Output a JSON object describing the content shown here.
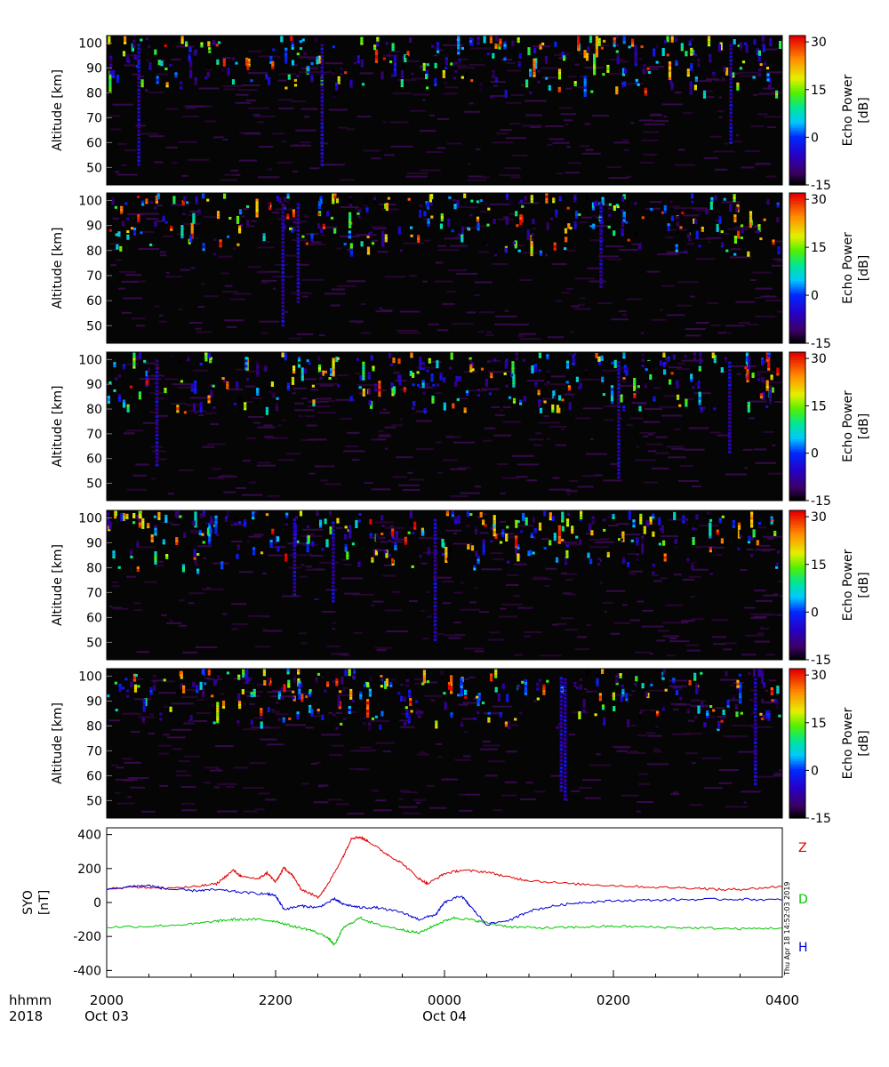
{
  "chart_data": [
    {
      "type": "heatmap",
      "panel": 1,
      "ylabel": "Altitude  [km]",
      "yticks": [
        "50",
        "60",
        "70",
        "80",
        "90",
        "100"
      ],
      "ylim": [
        43,
        103
      ],
      "colorbar": {
        "label_line1": "Echo Power",
        "label_line2": "[dB]",
        "ticks": [
          "30",
          "15",
          "0",
          "-15"
        ],
        "range": [
          -15,
          32
        ]
      },
      "x_range_hours": [
        20,
        28
      ],
      "background": "#050505",
      "note": "sparse echoes concentrated 80-100 km"
    },
    {
      "type": "heatmap",
      "panel": 2,
      "ylabel": "Altitude  [km]",
      "yticks": [
        "50",
        "60",
        "70",
        "80",
        "90",
        "100"
      ],
      "ylim": [
        43,
        103
      ],
      "colorbar": {
        "label_line1": "Echo Power",
        "label_line2": "[dB]",
        "ticks": [
          "30",
          "15",
          "0",
          "-15"
        ],
        "range": [
          -15,
          32
        ]
      },
      "x_range_hours": [
        20,
        28
      ]
    },
    {
      "type": "heatmap",
      "panel": 3,
      "ylabel": "Altitude  [km]",
      "yticks": [
        "50",
        "60",
        "70",
        "80",
        "90",
        "100"
      ],
      "ylim": [
        43,
        103
      ],
      "colorbar": {
        "label_line1": "Echo Power",
        "label_line2": "[dB]",
        "ticks": [
          "30",
          "15",
          "0",
          "-15"
        ],
        "range": [
          -15,
          32
        ]
      },
      "x_range_hours": [
        20,
        28
      ]
    },
    {
      "type": "heatmap",
      "panel": 4,
      "ylabel": "Altitude  [km]",
      "yticks": [
        "50",
        "60",
        "70",
        "80",
        "90",
        "100"
      ],
      "ylim": [
        43,
        103
      ],
      "colorbar": {
        "label_line1": "Echo Power",
        "label_line2": "[dB]",
        "ticks": [
          "30",
          "15",
          "0",
          "-15"
        ],
        "range": [
          -15,
          32
        ]
      },
      "x_range_hours": [
        20,
        28
      ]
    },
    {
      "type": "heatmap",
      "panel": 5,
      "ylabel": "Altitude  [km]",
      "yticks": [
        "50",
        "60",
        "70",
        "80",
        "90",
        "100"
      ],
      "ylim": [
        43,
        103
      ],
      "colorbar": {
        "label_line1": "Echo Power",
        "label_line2": "[dB]",
        "ticks": [
          "30",
          "15",
          "0",
          "-15"
        ],
        "range": [
          -15,
          32
        ]
      },
      "x_range_hours": [
        20,
        28
      ]
    },
    {
      "type": "line",
      "ylabel_line1": "SYO",
      "ylabel_line2": "[nT]",
      "yticks": [
        "400",
        "200",
        "0",
        "-200",
        "-400"
      ],
      "ylim": [
        -440,
        440
      ],
      "xlim_hours": [
        20,
        28
      ],
      "series": [
        {
          "name": "Z",
          "color": "#e00000",
          "points": [
            [
              20.0,
              80
            ],
            [
              20.3,
              95
            ],
            [
              20.6,
              85
            ],
            [
              21.0,
              90
            ],
            [
              21.3,
              110
            ],
            [
              21.5,
              190
            ],
            [
              21.6,
              150
            ],
            [
              21.8,
              140
            ],
            [
              21.9,
              175
            ],
            [
              22.0,
              120
            ],
            [
              22.1,
              205
            ],
            [
              22.2,
              160
            ],
            [
              22.3,
              80
            ],
            [
              22.5,
              30
            ],
            [
              22.6,
              90
            ],
            [
              22.8,
              270
            ],
            [
              22.9,
              380
            ],
            [
              23.0,
              385
            ],
            [
              23.1,
              360
            ],
            [
              23.3,
              290
            ],
            [
              23.5,
              230
            ],
            [
              23.7,
              140
            ],
            [
              23.8,
              110
            ],
            [
              24.0,
              170
            ],
            [
              24.2,
              190
            ],
            [
              24.5,
              180
            ],
            [
              24.8,
              145
            ],
            [
              25.0,
              130
            ],
            [
              25.5,
              110
            ],
            [
              26.0,
              100
            ],
            [
              26.5,
              90
            ],
            [
              27.0,
              85
            ],
            [
              27.3,
              75
            ],
            [
              27.6,
              80
            ],
            [
              28.0,
              95
            ]
          ]
        },
        {
          "name": "D",
          "color": "#00c800",
          "points": [
            [
              20.0,
              -145
            ],
            [
              20.5,
              -140
            ],
            [
              21.0,
              -128
            ],
            [
              21.3,
              -110
            ],
            [
              21.5,
              -100
            ],
            [
              21.8,
              -100
            ],
            [
              22.0,
              -110
            ],
            [
              22.2,
              -140
            ],
            [
              22.4,
              -160
            ],
            [
              22.6,
              -200
            ],
            [
              22.7,
              -250
            ],
            [
              22.8,
              -150
            ],
            [
              23.0,
              -90
            ],
            [
              23.2,
              -130
            ],
            [
              23.5,
              -160
            ],
            [
              23.7,
              -180
            ],
            [
              23.9,
              -130
            ],
            [
              24.1,
              -90
            ],
            [
              24.3,
              -100
            ],
            [
              24.5,
              -120
            ],
            [
              24.8,
              -145
            ],
            [
              25.2,
              -150
            ],
            [
              25.6,
              -145
            ],
            [
              26.0,
              -140
            ],
            [
              26.5,
              -145
            ],
            [
              27.0,
              -150
            ],
            [
              27.5,
              -155
            ],
            [
              28.0,
              -150
            ]
          ]
        },
        {
          "name": "H",
          "color": "#0000d0",
          "points": [
            [
              20.0,
              75
            ],
            [
              20.3,
              95
            ],
            [
              20.5,
              100
            ],
            [
              20.7,
              80
            ],
            [
              21.0,
              70
            ],
            [
              21.3,
              75
            ],
            [
              21.6,
              60
            ],
            [
              21.9,
              50
            ],
            [
              22.0,
              40
            ],
            [
              22.1,
              -40
            ],
            [
              22.3,
              -20
            ],
            [
              22.5,
              -30
            ],
            [
              22.7,
              20
            ],
            [
              22.8,
              -10
            ],
            [
              23.0,
              -30
            ],
            [
              23.2,
              -30
            ],
            [
              23.5,
              -60
            ],
            [
              23.7,
              -100
            ],
            [
              23.9,
              -70
            ],
            [
              24.0,
              0
            ],
            [
              24.2,
              40
            ],
            [
              24.3,
              -20
            ],
            [
              24.5,
              -130
            ],
            [
              24.8,
              -100
            ],
            [
              25.0,
              -50
            ],
            [
              25.3,
              -20
            ],
            [
              25.6,
              0
            ],
            [
              26.0,
              10
            ],
            [
              26.5,
              15
            ],
            [
              27.0,
              18
            ],
            [
              27.5,
              20
            ],
            [
              28.0,
              15
            ]
          ]
        }
      ]
    }
  ],
  "xaxis": {
    "row1_label": "hhmm",
    "row2_label": "2018",
    "ticks": [
      {
        "hour": 20,
        "label": "2000",
        "sub": "Oct 03"
      },
      {
        "hour": 22,
        "label": "2200",
        "sub": ""
      },
      {
        "hour": 24,
        "label": "0000",
        "sub": "Oct 04"
      },
      {
        "hour": 26,
        "label": "0200",
        "sub": ""
      },
      {
        "hour": 28,
        "label": "0400",
        "sub": ""
      }
    ]
  },
  "timestamp": "Thu Apr 18 14:52:03 2019"
}
